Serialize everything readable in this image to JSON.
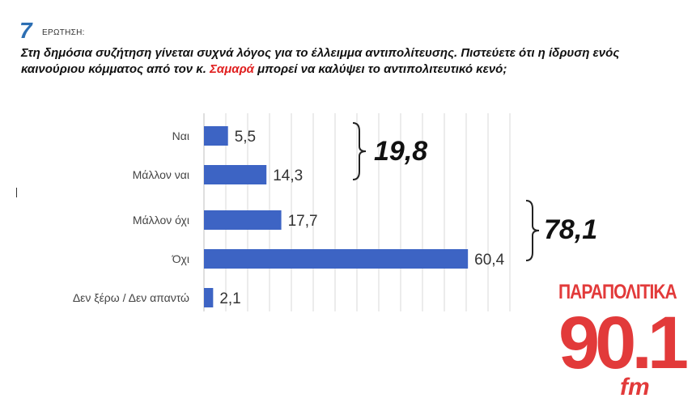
{
  "header": {
    "question_number": "7",
    "question_label": "ΕΡΩΤΗΣΗ:"
  },
  "question": {
    "text_before": "Στη δημόσια συζήτηση γίνεται συχνά λόγος για το έλλειμμα αντιπολίτευσης. Πιστεύετε ότι η ίδρυση ενός καινούριου κόμματος από τον κ. ",
    "highlight": "Σαμαρά",
    "text_after": " μπορεί να καλύψει το αντιπολιτευτικό κενό;",
    "highlight_color": "#e02020"
  },
  "chart_data": {
    "type": "bar",
    "orientation": "horizontal",
    "categories": [
      "Ναι",
      "Μάλλον ναι",
      "Μάλλον όχι",
      "Όχι",
      "Δεν ξέρω / Δεν απαντώ"
    ],
    "values": [
      5.5,
      14.3,
      17.7,
      60.4,
      2.1
    ],
    "value_labels": [
      "5,5",
      "14,3",
      "17,7",
      "60,4",
      "2,1"
    ],
    "xlim": [
      0,
      70
    ],
    "grid": true,
    "bar_color": "#3d64c4",
    "groups": [
      {
        "categories": [
          "Ναι",
          "Μάλλον ναι"
        ],
        "total_label": "19,8"
      },
      {
        "categories": [
          "Μάλλον όχι",
          "Όχι"
        ],
        "total_label": "78,1"
      }
    ]
  },
  "logo": {
    "line1": "ΠΑΡΑΠΟΛΙΤΙΚΑ",
    "line2": "90.1",
    "line3": "fm",
    "color": "#e23a3a"
  }
}
